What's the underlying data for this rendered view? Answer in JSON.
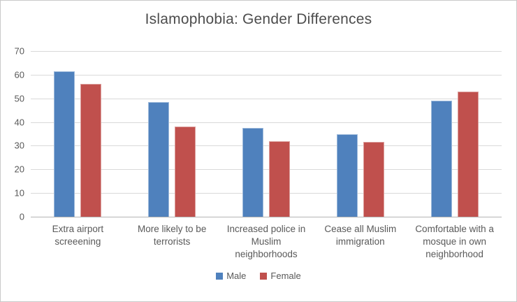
{
  "chart_data": {
    "type": "bar",
    "title": "Islamophobia: Gender Differences",
    "categories": [
      "Extra airport\nscreeening",
      "More likely to be\nterrorists",
      "Increased police in\nMuslim\nneighborhoods",
      "Cease all Muslim\nimmigration",
      "Comfortable with a\nmosque in own\nneighborhood"
    ],
    "series": [
      {
        "name": "Male",
        "color": "#4F81BD",
        "values": [
          61.5,
          48.5,
          37.5,
          35,
          49
        ]
      },
      {
        "name": "Female",
        "color": "#C0504D",
        "values": [
          56,
          38,
          32,
          31.5,
          53
        ]
      }
    ],
    "xlabel": "",
    "ylabel": "",
    "ylim": [
      0,
      70
    ],
    "yticks": [
      0,
      10,
      20,
      30,
      40,
      50,
      60,
      70
    ],
    "grid": true,
    "legend_position": "bottom",
    "colors": {
      "gridline": "#d9d9d9",
      "axis_line": "#b3b3b3",
      "tick_text": "#595959",
      "label_text": "#595959",
      "title_text": "#4d4d4d",
      "frame_border": "#c9c9c9",
      "background": "#ffffff"
    }
  }
}
